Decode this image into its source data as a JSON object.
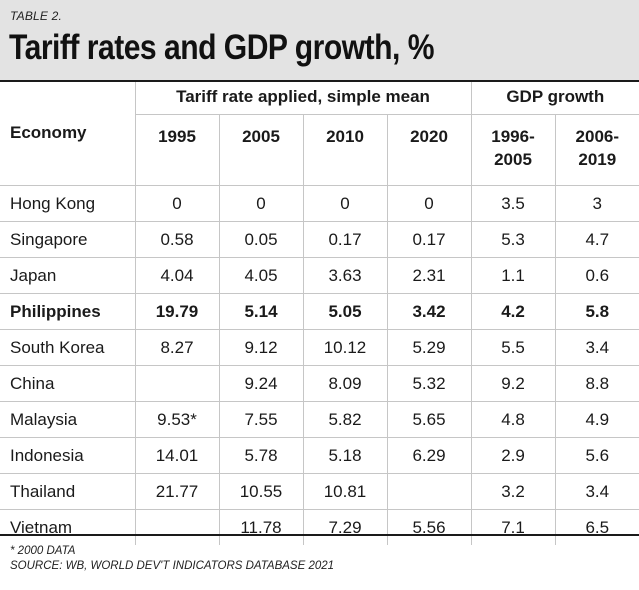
{
  "header": {
    "table_label": "TABLE 2.",
    "title": "Tariff rates and GDP growth, %"
  },
  "columns": {
    "economy": "Economy",
    "tariff_group": "Tariff rate applied, simple mean",
    "gdp_group": "GDP growth",
    "years": [
      "1995",
      "2005",
      "2010",
      "2020"
    ],
    "periods": [
      [
        "1996-",
        "2005"
      ],
      [
        "2006-",
        "2019"
      ]
    ]
  },
  "rows": [
    {
      "economy": "Hong Kong",
      "values": [
        "0",
        "0",
        "0",
        "0",
        "3.5",
        "3"
      ]
    },
    {
      "economy": "Singapore",
      "values": [
        "0.58",
        "0.05",
        "0.17",
        "0.17",
        "5.3",
        "4.7"
      ]
    },
    {
      "economy": "Japan",
      "values": [
        "4.04",
        "4.05",
        "3.63",
        "2.31",
        "1.1",
        "0.6"
      ]
    },
    {
      "economy": "Philippines",
      "values": [
        "19.79",
        "5.14",
        "5.05",
        "3.42",
        "4.2",
        "5.8"
      ],
      "highlight": true
    },
    {
      "economy": "South Korea",
      "values": [
        "8.27",
        "9.12",
        "10.12",
        "5.29",
        "5.5",
        "3.4"
      ]
    },
    {
      "economy": "China",
      "values": [
        "",
        "9.24",
        "8.09",
        "5.32",
        "9.2",
        "8.8"
      ]
    },
    {
      "economy": "Malaysia",
      "values": [
        "9.53*",
        "7.55",
        "5.82",
        "5.65",
        "4.8",
        "4.9"
      ]
    },
    {
      "economy": "Indonesia",
      "values": [
        "14.01",
        "5.78",
        "5.18",
        "6.29",
        "2.9",
        "5.6"
      ]
    },
    {
      "economy": "Thailand",
      "values": [
        "21.77",
        "10.55",
        "10.81",
        "",
        "3.2",
        "3.4"
      ]
    },
    {
      "economy": "Vietnam",
      "values": [
        "",
        "11.78",
        "7.29",
        "5.56",
        "7.1",
        "6.5"
      ]
    }
  ],
  "footer": {
    "note": "* 2000 DATA",
    "source": "SOURCE: WB, WORLD DEV'T INDICATORS DATABASE 2021"
  }
}
